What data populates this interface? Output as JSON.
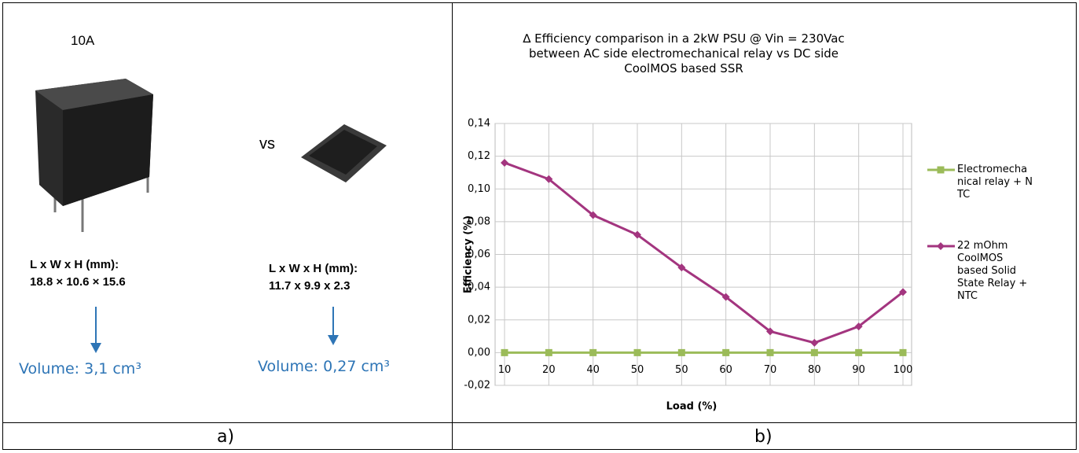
{
  "left": {
    "rating": "10A",
    "vs": "vs",
    "relay": {
      "dims_label": "L x W x H  (mm):",
      "dims": "18.8 × 10.6 × 15.6",
      "volume": "Volume: 3,1 cm³"
    },
    "mosfet": {
      "dims_label": "L x W x H  (mm):",
      "dims": "11.7 x 9.9 x 2.3",
      "volume": "Volume: 0,27 cm³"
    },
    "caption": "a)"
  },
  "right": {
    "caption": "b)"
  },
  "chart_data": {
    "type": "line",
    "title": "∆ Efficiency comparison in a 2kW PSU @ Vin = 230Vac between AC side electromechanical relay vs DC side CoolMOS based SSR",
    "x_label": "Load (%)",
    "y_label": "Efficiency (%)",
    "categories": [
      "10",
      "20",
      "40",
      "50",
      "50",
      "60",
      "70",
      "80",
      "90",
      "100"
    ],
    "series": [
      {
        "name": "Electromechanical relay + NTC",
        "color": "#9bbb59",
        "marker": "square",
        "values": [
          0,
          0,
          0,
          0,
          0,
          0,
          0,
          0,
          0,
          0
        ]
      },
      {
        "name": "22 mOhm CoolMOS based Solid State Relay + NTC",
        "color": "#a3357f",
        "marker": "diamond",
        "values": [
          0.116,
          0.106,
          0.084,
          0.072,
          0.052,
          0.034,
          0.013,
          0.006,
          0.016,
          0.037
        ]
      }
    ],
    "ylim": [
      -0.02,
      0.14
    ],
    "yticks": [
      {
        "value": -0.02,
        "label": "-0,02"
      },
      {
        "value": 0,
        "label": "0,00"
      },
      {
        "value": 0.02,
        "label": "0,02"
      },
      {
        "value": 0.04,
        "label": "0,04"
      },
      {
        "value": 0.06,
        "label": "0,06"
      },
      {
        "value": 0.08,
        "label": "0,08"
      },
      {
        "value": 0.1,
        "label": "0,10"
      },
      {
        "value": 0.12,
        "label": "0,12"
      },
      {
        "value": 0.14,
        "label": "0,14"
      }
    ],
    "grid": true,
    "legend": "right"
  }
}
